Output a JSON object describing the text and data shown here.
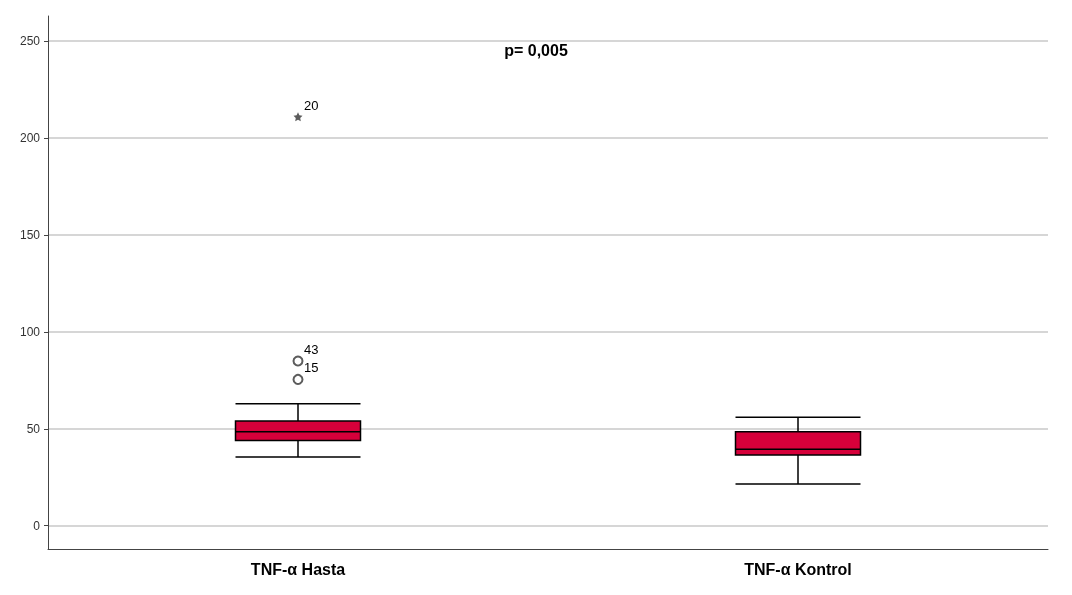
{
  "chart_data": {
    "type": "box",
    "categories": [
      "TNF-α Hasta",
      "TNF-α Kontrol"
    ],
    "color": "#d6003a",
    "boxes": [
      {
        "low": 35.5,
        "q1": 44,
        "median": 48.5,
        "q3": 54,
        "high": 63
      },
      {
        "low": 21.5,
        "q1": 36.5,
        "median": 39.5,
        "q3": 48.5,
        "high": 56
      }
    ],
    "series": [
      {
        "type": "scatter",
        "marker": "star",
        "color": "#333333",
        "x": [
          "TNF-α Hasta"
        ],
        "values": [
          211
        ]
      },
      {
        "type": "scatter",
        "marker": "circle",
        "color": "#333333",
        "x": [
          "TNF-α Hasta",
          "TNF-α Hasta"
        ],
        "values": [
          85,
          75.5
        ]
      }
    ],
    "ylim": [
      -12,
      263
    ],
    "yticks": [
      0,
      50,
      100,
      150,
      200,
      250
    ],
    "grid": "y",
    "annotations": [
      "p= 0,005",
      {
        "text": "20",
        "x": "TNF-α Hasta",
        "y": 211
      },
      {
        "text": "43",
        "x": "TNF-α Hasta",
        "y": 85
      },
      {
        "text": "15",
        "x": "TNF-α Hasta",
        "y": 75.5
      }
    ]
  }
}
